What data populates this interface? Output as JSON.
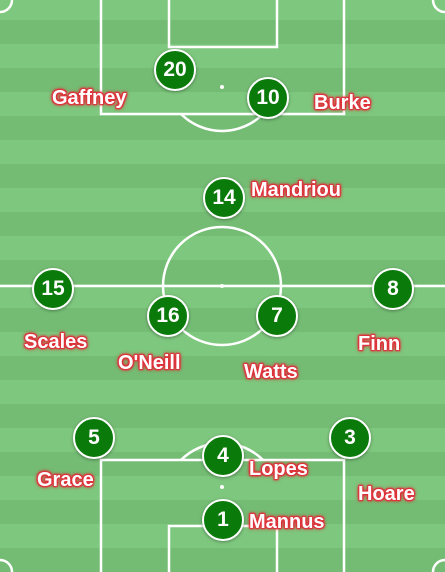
{
  "pitch": {
    "grass_light": "#7ec77e",
    "grass_dark": "#74bc74",
    "line_color": "#ffffff"
  },
  "player_style": {
    "disc_color": "#0a7a0a",
    "name_color": "#ffffff",
    "name_outline": "#e0303a"
  },
  "players": [
    {
      "number": "20",
      "name": "Gaffney"
    },
    {
      "number": "10",
      "name": "Burke"
    },
    {
      "number": "14",
      "name": "Mandriou"
    },
    {
      "number": "15",
      "name": "Scales"
    },
    {
      "number": "16",
      "name": "O'Neill"
    },
    {
      "number": "7",
      "name": "Watts"
    },
    {
      "number": "8",
      "name": "Finn"
    },
    {
      "number": "5",
      "name": "Grace"
    },
    {
      "number": "4",
      "name": "Lopes"
    },
    {
      "number": "3",
      "name": "Hoare"
    },
    {
      "number": "1",
      "name": "Mannus"
    }
  ]
}
